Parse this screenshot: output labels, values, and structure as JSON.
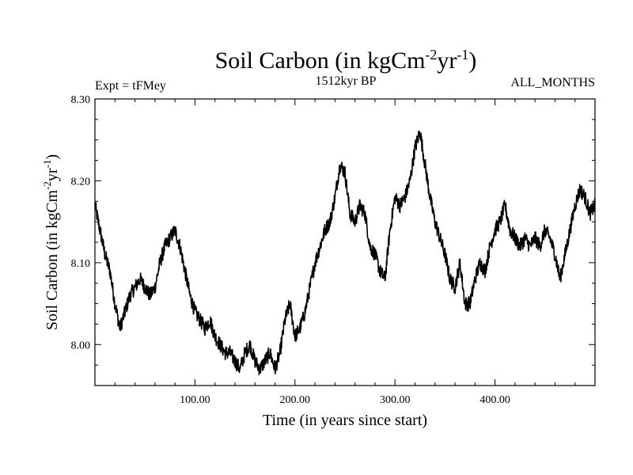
{
  "chart_data": {
    "type": "line",
    "title": "Soil Carbon (in kgCm",
    "title_sup1": "-2",
    "title_mid": "yr",
    "title_sup2": "-1",
    "title_end": ")",
    "subtitle_left": "Expt = tFMey",
    "subtitle_center": "1512kyr BP",
    "subtitle_right": "ALL_MONTHS",
    "xlabel": "Time (in years since start)",
    "ylabel": "Soil Carbon (in kgCm",
    "ylabel_sup1": "-2",
    "ylabel_mid": "yr",
    "ylabel_sup2": "-1",
    "ylabel_end": ")",
    "xlim": [
      0,
      500
    ],
    "ylim": [
      7.95,
      8.3
    ],
    "x_ticks": [
      100,
      200,
      300,
      400
    ],
    "x_tick_labels": [
      "100.00",
      "200.00",
      "300.00",
      "400.00"
    ],
    "y_ticks": [
      8.0,
      8.1,
      8.2,
      8.3
    ],
    "y_tick_labels": [
      "8.00",
      "8.10",
      "8.20",
      "8.30"
    ],
    "series": [
      {
        "color": "#000000",
        "x": [
          0,
          5,
          10,
          15,
          20,
          25,
          30,
          35,
          40,
          45,
          50,
          55,
          60,
          65,
          70,
          75,
          80,
          85,
          90,
          95,
          100,
          105,
          110,
          115,
          120,
          125,
          130,
          135,
          140,
          145,
          150,
          155,
          160,
          165,
          170,
          175,
          180,
          185,
          190,
          195,
          200,
          205,
          210,
          215,
          220,
          225,
          230,
          235,
          240,
          245,
          250,
          255,
          260,
          265,
          270,
          275,
          280,
          285,
          290,
          295,
          300,
          305,
          310,
          315,
          320,
          325,
          330,
          335,
          340,
          345,
          350,
          355,
          360,
          365,
          370,
          375,
          380,
          385,
          390,
          395,
          400,
          405,
          410,
          415,
          420,
          425,
          430,
          435,
          440,
          445,
          450,
          455,
          460,
          465,
          470,
          475,
          480,
          485,
          490,
          495,
          500
        ],
        "y": [
          8.17,
          8.14,
          8.11,
          8.09,
          8.05,
          8.02,
          8.04,
          8.06,
          8.07,
          8.08,
          8.07,
          8.06,
          8.07,
          8.1,
          8.12,
          8.13,
          8.14,
          8.12,
          8.09,
          8.06,
          8.04,
          8.03,
          8.02,
          8.03,
          8.01,
          8.0,
          7.99,
          7.99,
          7.98,
          7.97,
          7.99,
          8.0,
          7.98,
          7.97,
          7.98,
          7.99,
          7.97,
          7.99,
          8.03,
          8.05,
          8.01,
          8.02,
          8.04,
          8.07,
          8.1,
          8.12,
          8.14,
          8.15,
          8.18,
          8.22,
          8.21,
          8.16,
          8.15,
          8.17,
          8.16,
          8.12,
          8.11,
          8.09,
          8.08,
          8.14,
          8.18,
          8.17,
          8.18,
          8.2,
          8.24,
          8.26,
          8.22,
          8.18,
          8.15,
          8.13,
          8.11,
          8.08,
          8.07,
          8.1,
          8.05,
          8.05,
          8.08,
          8.1,
          8.09,
          8.12,
          8.14,
          8.15,
          8.17,
          8.14,
          8.13,
          8.12,
          8.13,
          8.12,
          8.13,
          8.12,
          8.14,
          8.13,
          8.11,
          8.08,
          8.11,
          8.14,
          8.17,
          8.19,
          8.18,
          8.16,
          8.17
        ]
      }
    ]
  }
}
